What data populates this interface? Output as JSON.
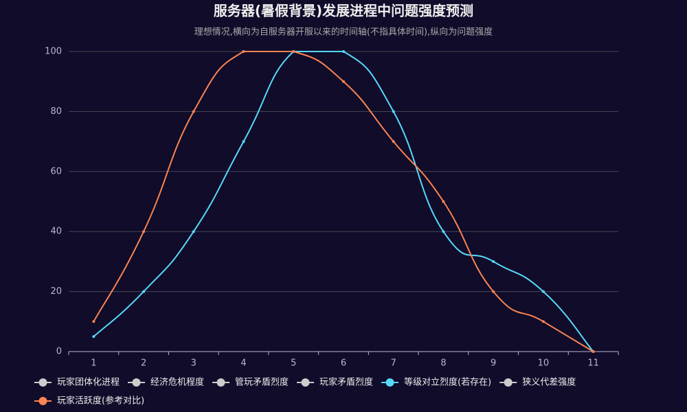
{
  "chart_data": {
    "type": "line",
    "title": "服务器(暑假背景)发展进程中问题强度预测",
    "subtitle": "理想情况,横向为自服务器开服以来的时间轴(不指具体时间),纵向为问题强度",
    "categories": [
      "1",
      "2",
      "3",
      "4",
      "5",
      "6",
      "7",
      "8",
      "9",
      "10",
      "11"
    ],
    "series": [
      {
        "name": "玩家团体化进程",
        "color": "#cccccc",
        "hidden": true
      },
      {
        "name": "经济危机程度",
        "color": "#cccccc",
        "hidden": true
      },
      {
        "name": "管玩矛盾烈度",
        "color": "#cccccc",
        "hidden": true
      },
      {
        "name": "玩家矛盾烈度",
        "color": "#cccccc",
        "hidden": true
      },
      {
        "name": "等级对立烈度(若存在)",
        "color": "#58d9f9",
        "values": [
          5,
          20,
          40,
          70,
          100,
          100,
          80,
          40,
          30,
          20,
          0
        ]
      },
      {
        "name": "狭义代差强度",
        "color": "#cccccc",
        "hidden": true
      },
      {
        "name": "玩家活跃度(参考对比)",
        "color": "#fc8452",
        "values": [
          10,
          40,
          80,
          100,
          100,
          90,
          70,
          50,
          20,
          10,
          0
        ]
      }
    ],
    "ylim": [
      0,
      100
    ],
    "yticks": [
      0,
      20,
      40,
      60,
      80,
      100
    ],
    "grid": true,
    "legend": "bottom"
  }
}
